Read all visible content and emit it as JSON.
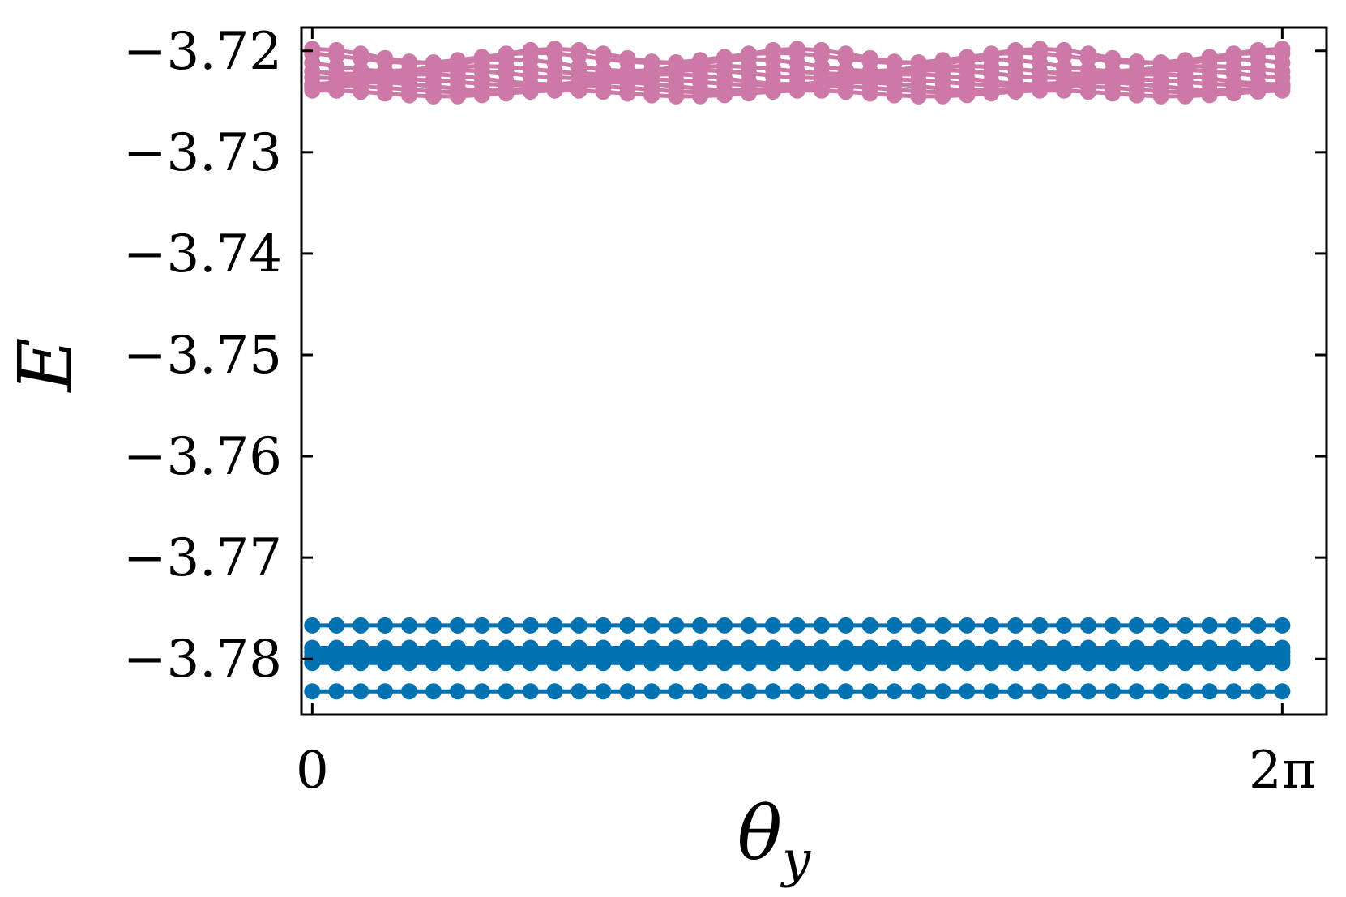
{
  "chart_data": {
    "type": "line",
    "title": "",
    "xlabel": "θ",
    "xlabel_subscript": "y",
    "ylabel": "E",
    "xlim": [
      -0.07,
      6.57
    ],
    "ylim": [
      -3.7855,
      -3.7177
    ],
    "xticks": [
      {
        "value": 0,
        "label": "0"
      },
      {
        "value": 6.2832,
        "label": "2π"
      }
    ],
    "yticks": [
      {
        "value": -3.72,
        "label": "−3.72"
      },
      {
        "value": -3.73,
        "label": "−3.73"
      },
      {
        "value": -3.74,
        "label": "−3.74"
      },
      {
        "value": -3.75,
        "label": "−3.75"
      },
      {
        "value": -3.76,
        "label": "−3.76"
      },
      {
        "value": -3.77,
        "label": "−3.77"
      },
      {
        "value": -3.78,
        "label": "−3.78"
      }
    ],
    "grid": false,
    "legend": "none",
    "x_points": 41,
    "x_range": [
      0,
      6.2832
    ],
    "colors": {
      "upper_band": "#cc79a7",
      "lower_band": "#0072b2"
    },
    "series": [
      {
        "group": "upper_band",
        "baseline": -3.7205,
        "amplitude": 0.0007,
        "periods": 4,
        "phase": 0.0
      },
      {
        "group": "upper_band",
        "baseline": -3.7207,
        "amplitude": 0.0005,
        "periods": 4,
        "phase": 0.5
      },
      {
        "group": "upper_band",
        "baseline": -3.7214,
        "amplitude": 0.0006,
        "periods": 4,
        "phase": 1.2
      },
      {
        "group": "upper_band",
        "baseline": -3.7219,
        "amplitude": 0.0004,
        "periods": 4,
        "phase": 1.9
      },
      {
        "group": "upper_band",
        "baseline": -3.7223,
        "amplitude": 0.0004,
        "periods": 4,
        "phase": 2.6
      },
      {
        "group": "upper_band",
        "baseline": -3.7228,
        "amplitude": 0.0005,
        "periods": 4,
        "phase": 3.3
      },
      {
        "group": "upper_band",
        "baseline": -3.7231,
        "amplitude": 0.0003,
        "periods": 4,
        "phase": 4.0
      },
      {
        "group": "upper_band",
        "baseline": -3.7235,
        "amplitude": 0.0004,
        "periods": 4,
        "phase": 4.7
      },
      {
        "group": "upper_band",
        "baseline": -3.7238,
        "amplitude": 0.0003,
        "periods": 4,
        "phase": 5.4
      },
      {
        "group": "upper_band",
        "baseline": -3.7242,
        "amplitude": 0.0003,
        "periods": 4,
        "phase": 6.0
      },
      {
        "group": "lower_band",
        "baseline": -3.7767,
        "amplitude": 0.0,
        "periods": 0,
        "phase": 0
      },
      {
        "group": "lower_band",
        "baseline": -3.7789,
        "amplitude": 0.0,
        "periods": 0,
        "phase": 0
      },
      {
        "group": "lower_band",
        "baseline": -3.7793,
        "amplitude": 0.0,
        "periods": 0,
        "phase": 0
      },
      {
        "group": "lower_band",
        "baseline": -3.7797,
        "amplitude": 0.0,
        "periods": 0,
        "phase": 0
      },
      {
        "group": "lower_band",
        "baseline": -3.7801,
        "amplitude": 0.0,
        "periods": 0,
        "phase": 0
      },
      {
        "group": "lower_band",
        "baseline": -3.7804,
        "amplitude": 0.0,
        "periods": 0,
        "phase": 0
      },
      {
        "group": "lower_band",
        "baseline": -3.7832,
        "amplitude": 0.0,
        "periods": 0,
        "phase": 0
      }
    ]
  }
}
